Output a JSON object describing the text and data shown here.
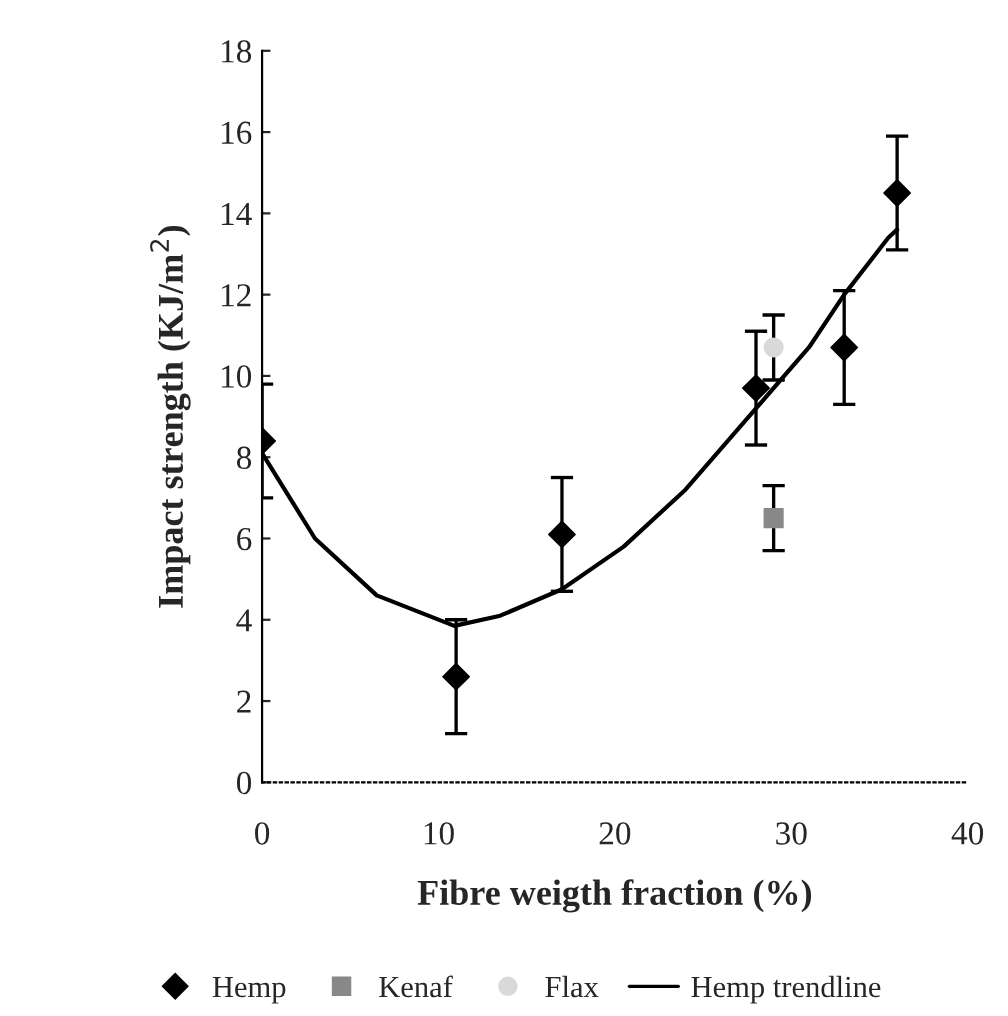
{
  "chart_data": {
    "type": "scatter",
    "xlabel": "Fibre weigth fraction (%)",
    "ylabel": "Impact strength (KJ/m$^{2}$)",
    "xlim": [
      0,
      40
    ],
    "xticks": [
      0,
      10,
      20,
      30,
      40
    ],
    "ylim": [
      0,
      18
    ],
    "yticks": [
      0,
      2,
      4,
      6,
      8,
      10,
      12,
      14,
      16,
      18
    ],
    "grid": false,
    "legend": "bottom",
    "marker": "diamond",
    "series": [
      {
        "name": "Hemp",
        "color": "#000000",
        "x": [
          0,
          11,
          17,
          28,
          33,
          36
        ],
        "values": [
          8.4,
          2.6,
          6.1,
          9.7,
          10.7,
          14.5
        ],
        "errors": [
          1.4,
          1.4,
          1.4,
          1.4,
          1.4,
          1.4
        ]
      },
      {
        "name": "Kenaf",
        "color": "#888888",
        "marker": "square",
        "x": [
          29
        ],
        "values": [
          6.5
        ],
        "errors": [
          0.8
        ]
      },
      {
        "name": "Flax",
        "color": "#d9d9d9",
        "marker": "circle",
        "x": [
          29
        ],
        "values": [
          10.7
        ],
        "errors": [
          0.8
        ]
      },
      {
        "name": "Hemp trendline",
        "type": "line",
        "color": "#000000",
        "marker": "none",
        "x": [
          0,
          3,
          6.5,
          10.9,
          13.5,
          17,
          20.5,
          24,
          28,
          31,
          33,
          35.5,
          36
        ],
        "values": [
          8.1,
          6.0,
          4.6,
          3.85,
          4.1,
          4.75,
          5.8,
          7.2,
          9.2,
          10.7,
          12.0,
          13.4,
          13.6
        ]
      }
    ]
  }
}
